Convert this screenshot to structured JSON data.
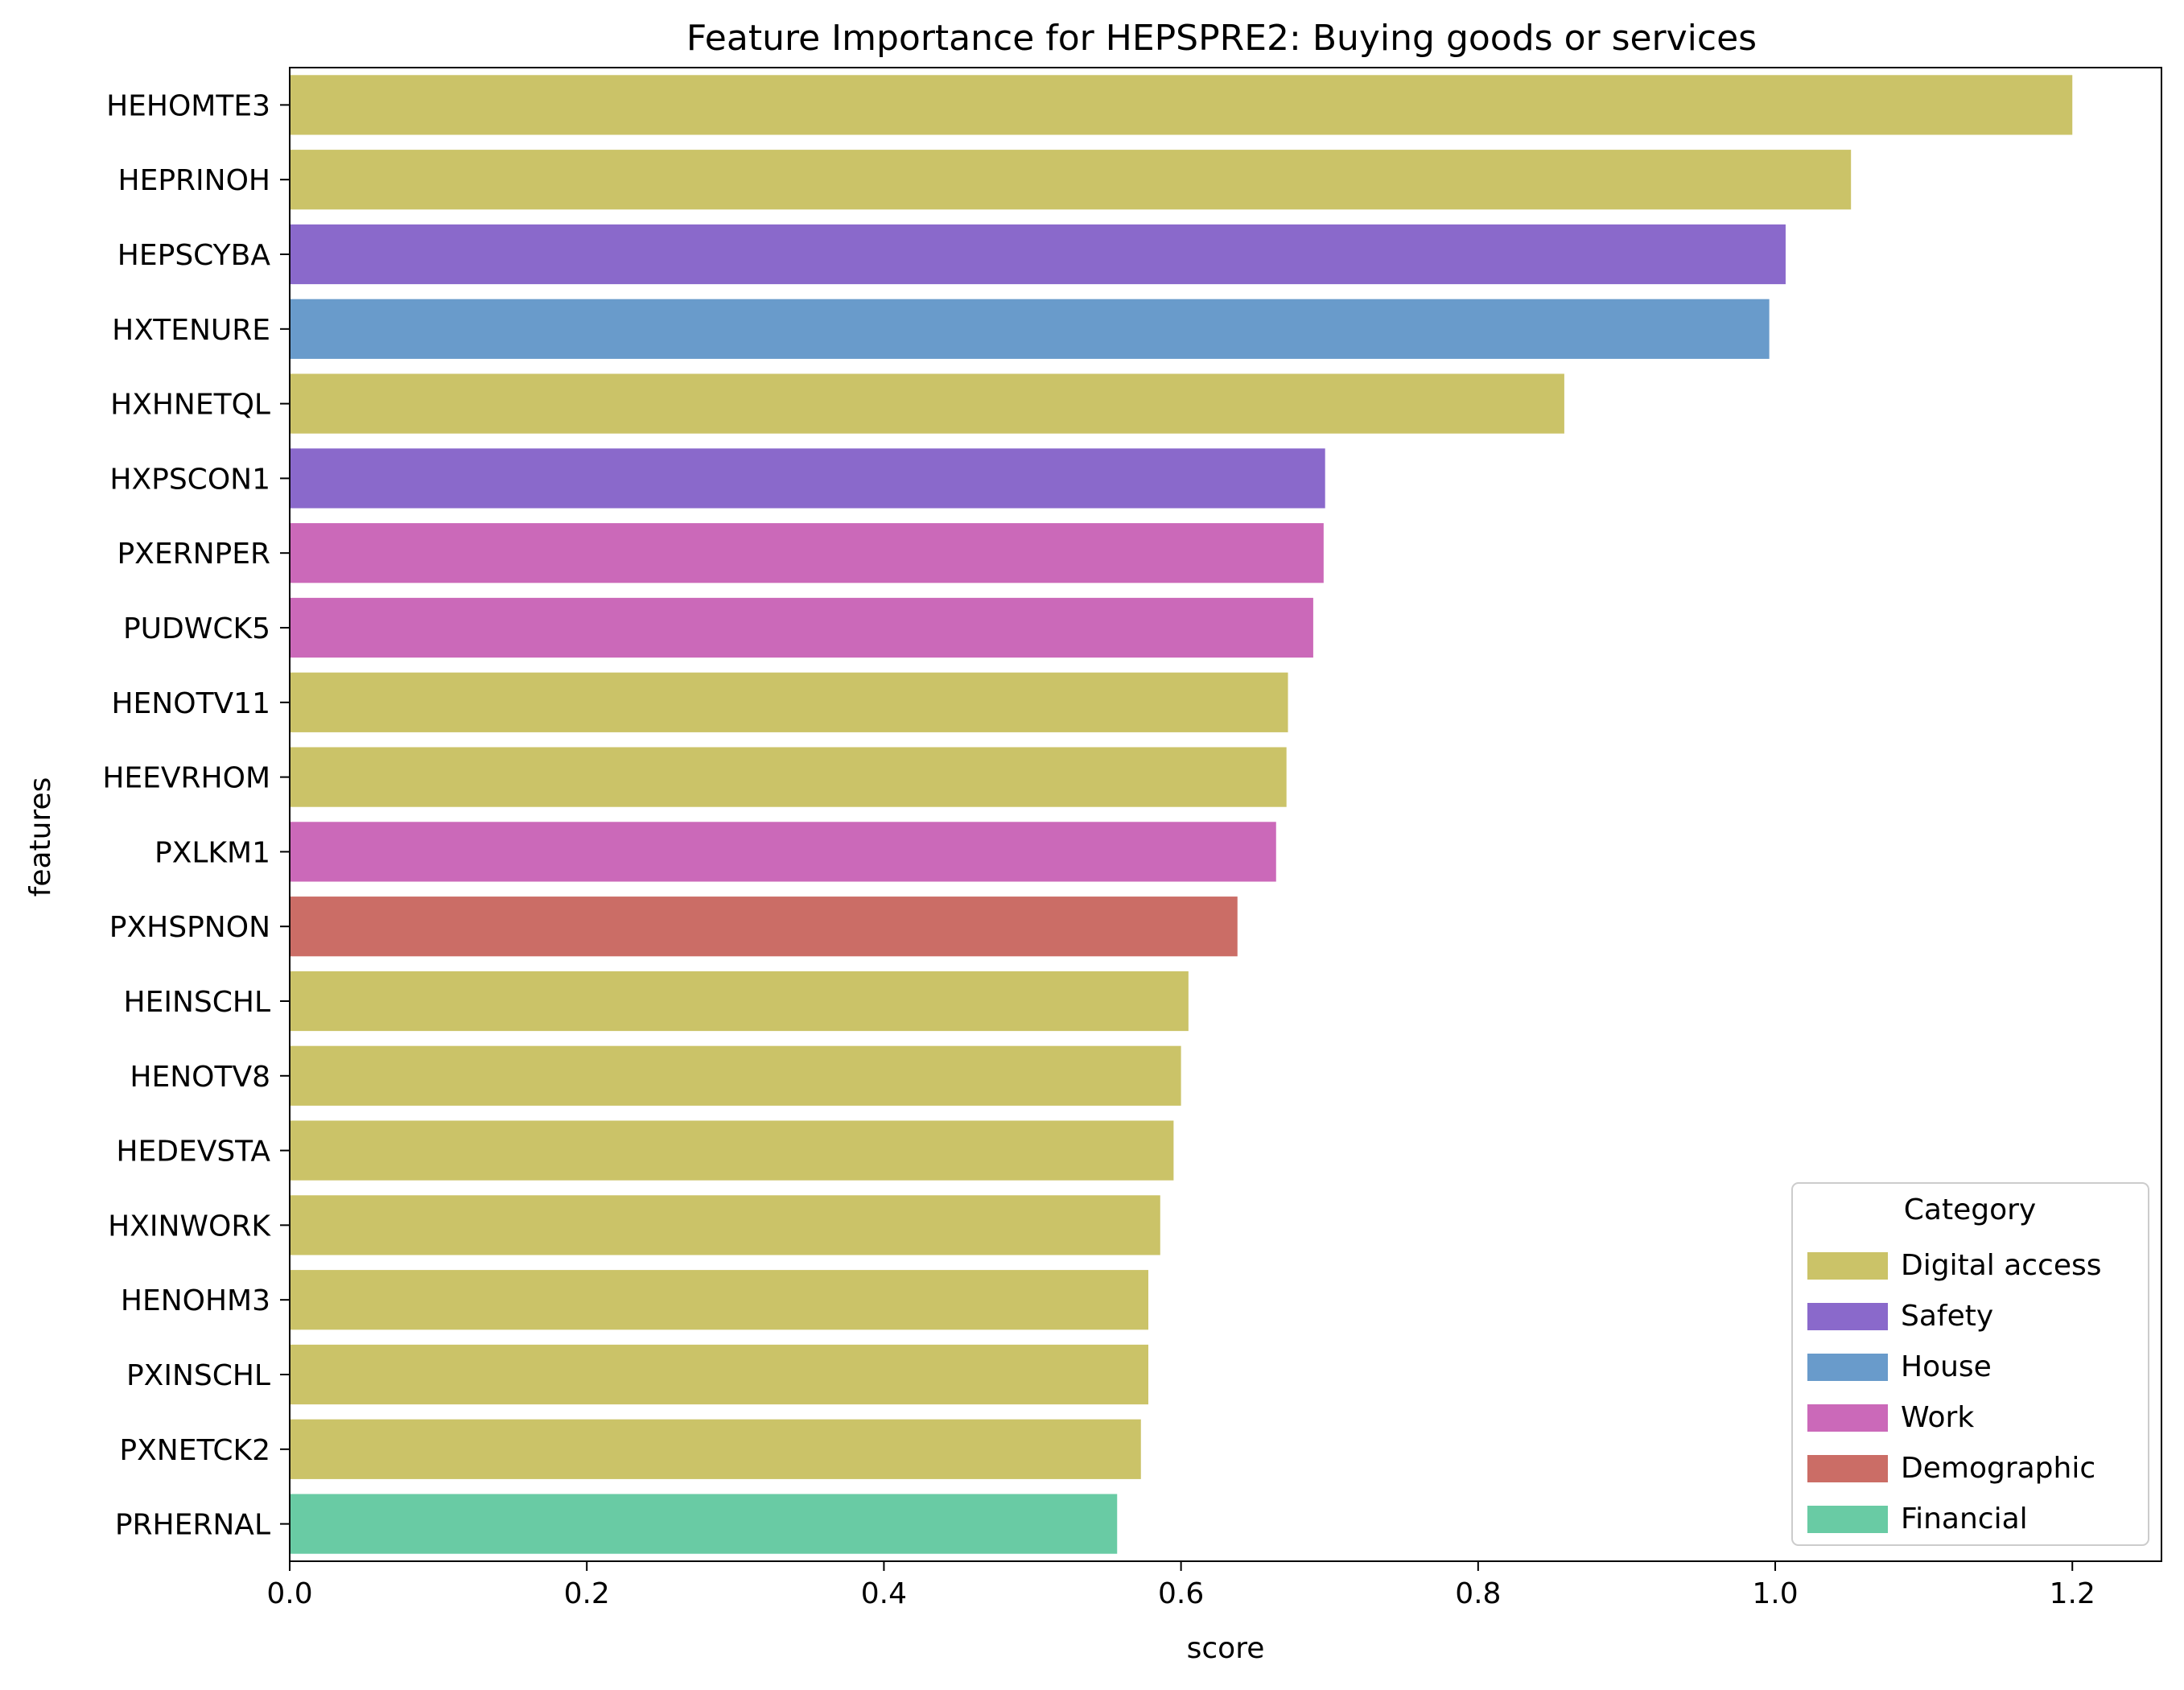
{
  "chart_data": {
    "type": "bar",
    "orientation": "horizontal",
    "title": "Feature Importance for HEPSPRE2: Buying goods or services",
    "xlabel": "score",
    "ylabel": "features",
    "xlim": [
      0,
      1.26
    ],
    "xticks": [
      0.0,
      0.2,
      0.4,
      0.6,
      0.8,
      1.0,
      1.2
    ],
    "xtick_labels": [
      "0.0",
      "0.2",
      "0.4",
      "0.6",
      "0.8",
      "1.0",
      "1.2"
    ],
    "grid": false,
    "categories": [
      "HEHOMTE3",
      "HEPRINOH",
      "HEPSCYBA",
      "HXTENURE",
      "HXHNETQL",
      "HXPSCON1",
      "PXERNPER",
      "PUDWCK5",
      "HENOTV11",
      "HEEVRHOM",
      "PXLKM1",
      "PXHSPNON",
      "HEINSCHL",
      "HENOTV8",
      "HEDEVSTA",
      "HXINWORK",
      "HENOHM3",
      "PXINSCHL",
      "PXNETCK2",
      "PRHERNAL"
    ],
    "values": [
      1.2,
      1.051,
      1.007,
      0.996,
      0.858,
      0.697,
      0.696,
      0.689,
      0.672,
      0.671,
      0.664,
      0.638,
      0.605,
      0.6,
      0.595,
      0.586,
      0.578,
      0.578,
      0.573,
      0.557
    ],
    "bar_category": [
      "Digital access",
      "Digital access",
      "Safety",
      "House",
      "Digital access",
      "Safety",
      "Work",
      "Work",
      "Digital access",
      "Digital access",
      "Work",
      "Demographic",
      "Digital access",
      "Digital access",
      "Digital access",
      "Digital access",
      "Digital access",
      "Digital access",
      "Digital access",
      "Financial"
    ],
    "legend": {
      "title": "Category",
      "placement": "bottom-right",
      "entries": [
        {
          "name": "Digital access",
          "color": "#cbc368"
        },
        {
          "name": "Safety",
          "color": "#8a69cb"
        },
        {
          "name": "House",
          "color": "#699bcb"
        },
        {
          "name": "Work",
          "color": "#cb69b9"
        },
        {
          "name": "Demographic",
          "color": "#cb6d66"
        },
        {
          "name": "Financial",
          "color": "#69cba4"
        }
      ]
    }
  }
}
